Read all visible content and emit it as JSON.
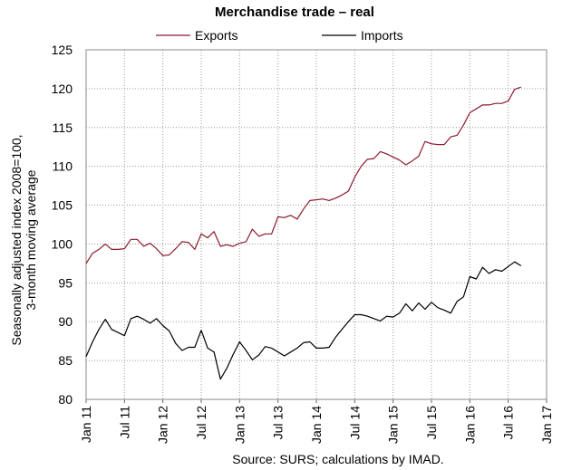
{
  "chart_data": {
    "type": "line",
    "title": "Merchandise trade – real",
    "ylabel_line1": "Seasonally adjusted index 2008=100,",
    "ylabel_line2": "3-month moving average",
    "source": "Source: SURS; calculations by IMAD.",
    "ylim": [
      80,
      125
    ],
    "yticks": [
      "80",
      "85",
      "90",
      "95",
      "100",
      "105",
      "110",
      "115",
      "120",
      "125"
    ],
    "xticks": [
      "Jan 11",
      "Jul 11",
      "Jan 12",
      "Jul 12",
      "Jan 13",
      "Jul 13",
      "Jan 14",
      "Jul 14",
      "Jan 15",
      "Jul 15",
      "Jan 16",
      "Jul 16",
      "Jan 17"
    ],
    "grid": true,
    "legend_position": "top",
    "series": [
      {
        "name": "Exports",
        "color": "#8b1a2b",
        "values": [
          97.5,
          98.8,
          99.3,
          100.0,
          99.3,
          99.3,
          99.4,
          100.6,
          100.6,
          99.7,
          100.1,
          99.4,
          98.5,
          98.6,
          99.4,
          100.3,
          100.2,
          99.3,
          101.3,
          100.8,
          101.6,
          99.7,
          99.9,
          99.7,
          100.1,
          100.3,
          101.9,
          101.0,
          101.3,
          101.3,
          103.5,
          103.4,
          103.7,
          103.2,
          104.5,
          105.6,
          105.7,
          105.8,
          105.6,
          105.9,
          106.3,
          106.8,
          108.6,
          110.0,
          110.9,
          111.0,
          111.9,
          111.6,
          111.2,
          110.8,
          110.2,
          110.7,
          111.3,
          113.2,
          112.9,
          112.8,
          112.8,
          113.8,
          114.0,
          115.3,
          116.9,
          117.4,
          117.9,
          117.9,
          118.1,
          118.1,
          118.4,
          119.9,
          120.2
        ]
      },
      {
        "name": "Imports",
        "color": "#000000",
        "values": [
          85.5,
          87.4,
          89.0,
          90.3,
          89.0,
          88.6,
          88.2,
          90.4,
          90.7,
          90.3,
          89.8,
          90.4,
          89.5,
          88.8,
          87.2,
          86.3,
          86.7,
          86.7,
          88.9,
          86.6,
          86.1,
          82.6,
          84.0,
          85.8,
          87.4,
          86.3,
          85.1,
          85.7,
          86.8,
          86.6,
          86.1,
          85.6,
          86.1,
          86.6,
          87.3,
          87.4,
          86.6,
          86.6,
          86.7,
          88.0,
          89.0,
          90.0,
          90.9,
          90.9,
          90.7,
          90.4,
          90.1,
          90.7,
          90.6,
          91.1,
          92.3,
          91.4,
          92.4,
          91.6,
          92.5,
          91.8,
          91.5,
          91.1,
          92.6,
          93.2,
          95.8,
          95.5,
          97.0,
          96.2,
          96.7,
          96.5,
          97.1,
          97.7,
          97.2
        ]
      }
    ]
  }
}
